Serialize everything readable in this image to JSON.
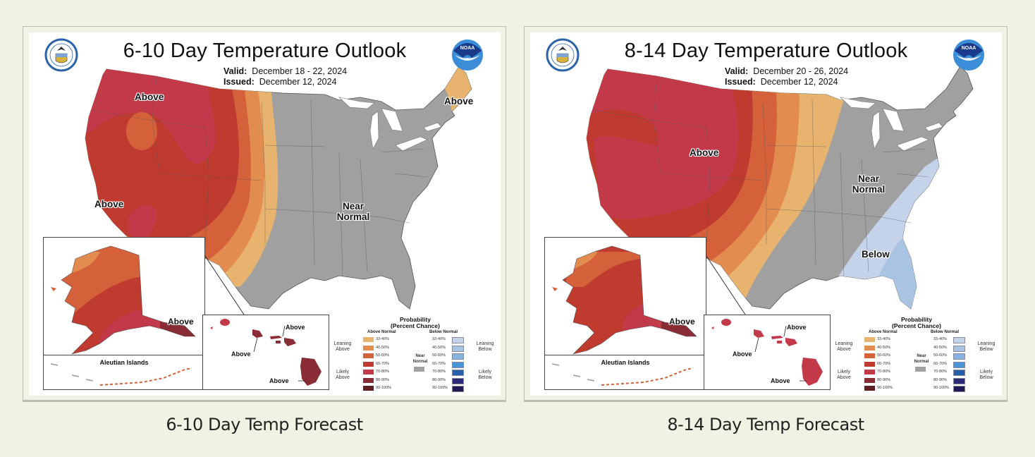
{
  "cards": [
    {
      "id": "6-10",
      "title": "6-10 Day Temperature Outlook",
      "valid_label": "Valid:",
      "valid_value": "December 18 - 22, 2024",
      "issued_label": "Issued:",
      "issued_value": "December 12, 2024",
      "caption": "6-10 Day Temp Forecast",
      "region_labels": {
        "northwest": "Above",
        "california": "Above",
        "maine": "Above",
        "central": "Near Normal",
        "alaska": "Above",
        "hawaii_oahu": "Above",
        "hawaii_maui": "Above",
        "hawaii_big_island": "Above"
      },
      "aleutian_title": "Aleutian Islands"
    },
    {
      "id": "8-14",
      "title": "8-14 Day Temperature Outlook",
      "valid_label": "Valid:",
      "valid_value": "December 20 - 26, 2024",
      "issued_label": "Issued:",
      "issued_value": "December 12, 2024",
      "caption": "8-14 Day Temp Forecast",
      "region_labels": {
        "west": "Above",
        "east_near": "Near Normal",
        "southeast": "Below",
        "alaska": "Above",
        "hawaii_oahu": "Above",
        "hawaii_maui": "Above",
        "hawaii_big_island": "Above"
      },
      "aleutian_title": "Aleutian Islands"
    }
  ],
  "legend": {
    "title_line1": "Probability",
    "title_line2": "(Percent Chance)",
    "above_header": "Above Normal",
    "below_header": "Below Normal",
    "near_label_line1": "Near",
    "near_label_line2": "Normal",
    "near_color": "#a0a0a0",
    "leaning_above": "Leaning Above",
    "likely_above": "Likely Above",
    "leaning_below": "Leaning Below",
    "likely_below": "Likely Below",
    "above": [
      {
        "range": "33-40%",
        "color": "#e8b36e"
      },
      {
        "range": "40-50%",
        "color": "#e38c4f"
      },
      {
        "range": "50-60%",
        "color": "#d4613a"
      },
      {
        "range": "60-70%",
        "color": "#bf3a2f"
      },
      {
        "range": "70-80%",
        "color": "#c23a4a"
      },
      {
        "range": "80-90%",
        "color": "#8a2c35"
      },
      {
        "range": "90-100%",
        "color": "#5e1e22"
      }
    ],
    "below": [
      {
        "range": "33-40%",
        "color": "#c5d3ea"
      },
      {
        "range": "40-50%",
        "color": "#a9c3e2"
      },
      {
        "range": "50-60%",
        "color": "#86b3e0"
      },
      {
        "range": "60-70%",
        "color": "#4a96d8"
      },
      {
        "range": "70-80%",
        "color": "#2660a8"
      },
      {
        "range": "80-90%",
        "color": "#2d2a7a"
      },
      {
        "range": "90-100%",
        "color": "#1e1a55"
      }
    ]
  },
  "icons": {
    "left_logo": "department-of-commerce-seal-icon",
    "right_logo": "noaa-logo-icon",
    "noaa_text": "NOAA"
  }
}
